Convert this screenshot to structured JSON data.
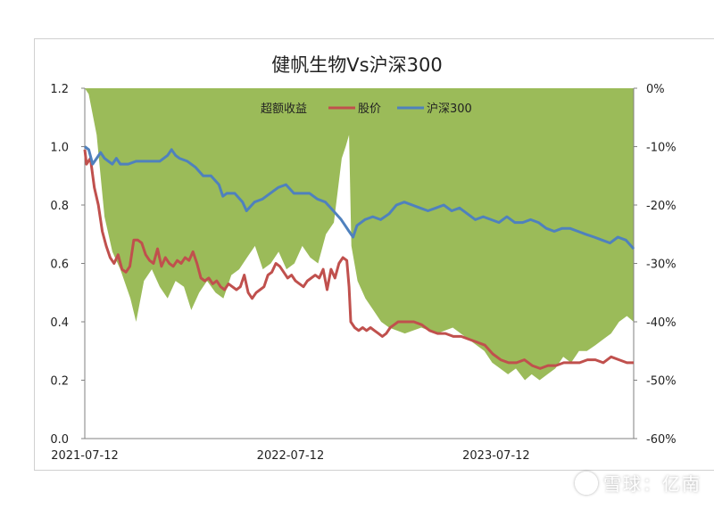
{
  "chart_data": {
    "type": "line",
    "title": "健帆生物Vs沪深300",
    "x_ticks": [
      "2021-07-12",
      "2022-07-12",
      "2023-07-12"
    ],
    "left_axis": {
      "ticks": [
        "1.2",
        "1.0",
        "0.8",
        "0.6",
        "0.4",
        "0.2",
        "0.0"
      ],
      "range": [
        0,
        1.2
      ]
    },
    "right_axis": {
      "ticks": [
        "0%",
        "-10%",
        "-20%",
        "-30%",
        "-40%",
        "-50%",
        "-60%"
      ],
      "range": [
        -0.6,
        0
      ]
    },
    "legend": {
      "placement": "top-center"
    },
    "x_range": [
      "2021-07-12",
      "2024-03-12"
    ],
    "series": [
      {
        "name": "超额收益",
        "kind": "area",
        "axis": "right",
        "color": "#9bbb59",
        "points": [
          [
            "2021-07-12",
            0.0
          ],
          [
            "2021-07-19",
            -0.01
          ],
          [
            "2021-08-02",
            -0.08
          ],
          [
            "2021-08-16",
            -0.22
          ],
          [
            "2021-08-30",
            -0.28
          ],
          [
            "2021-09-13",
            -0.31
          ],
          [
            "2021-10-01",
            -0.36
          ],
          [
            "2021-10-11",
            -0.4
          ],
          [
            "2021-10-25",
            -0.33
          ],
          [
            "2021-11-08",
            -0.31
          ],
          [
            "2021-11-22",
            -0.34
          ],
          [
            "2021-12-06",
            -0.36
          ],
          [
            "2021-12-20",
            -0.33
          ],
          [
            "2022-01-04",
            -0.34
          ],
          [
            "2022-01-17",
            -0.38
          ],
          [
            "2022-01-31",
            -0.35
          ],
          [
            "2022-02-14",
            -0.33
          ],
          [
            "2022-03-01",
            -0.35
          ],
          [
            "2022-03-15",
            -0.36
          ],
          [
            "2022-03-29",
            -0.32
          ],
          [
            "2022-04-12",
            -0.31
          ],
          [
            "2022-04-26",
            -0.29
          ],
          [
            "2022-05-10",
            -0.27
          ],
          [
            "2022-05-24",
            -0.31
          ],
          [
            "2022-06-07",
            -0.3
          ],
          [
            "2022-06-21",
            -0.28
          ],
          [
            "2022-07-05",
            -0.31
          ],
          [
            "2022-07-19",
            -0.3
          ],
          [
            "2022-08-02",
            -0.27
          ],
          [
            "2022-08-16",
            -0.29
          ],
          [
            "2022-08-30",
            -0.3
          ],
          [
            "2022-09-13",
            -0.25
          ],
          [
            "2022-09-27",
            -0.23
          ],
          [
            "2022-10-11",
            -0.12
          ],
          [
            "2022-10-18",
            -0.1
          ],
          [
            "2022-10-24",
            -0.08
          ],
          [
            "2022-10-28",
            -0.27
          ],
          [
            "2022-11-08",
            -0.33
          ],
          [
            "2022-11-22",
            -0.36
          ],
          [
            "2022-12-06",
            -0.38
          ],
          [
            "2022-12-20",
            -0.4
          ],
          [
            "2023-01-03",
            -0.41
          ],
          [
            "2023-01-31",
            -0.42
          ],
          [
            "2023-03-01",
            -0.41
          ],
          [
            "2023-03-29",
            -0.42
          ],
          [
            "2023-04-26",
            -0.41
          ],
          [
            "2023-05-24",
            -0.43
          ],
          [
            "2023-06-21",
            -0.45
          ],
          [
            "2023-07-05",
            -0.47
          ],
          [
            "2023-07-19",
            -0.48
          ],
          [
            "2023-08-02",
            -0.49
          ],
          [
            "2023-08-16",
            -0.48
          ],
          [
            "2023-09-01",
            -0.5
          ],
          [
            "2023-09-13",
            -0.49
          ],
          [
            "2023-09-27",
            -0.5
          ],
          [
            "2023-10-11",
            -0.49
          ],
          [
            "2023-10-25",
            -0.48
          ],
          [
            "2023-11-08",
            -0.46
          ],
          [
            "2023-11-22",
            -0.47
          ],
          [
            "2023-12-06",
            -0.45
          ],
          [
            "2023-12-20",
            -0.45
          ],
          [
            "2024-01-04",
            -0.44
          ],
          [
            "2024-01-18",
            -0.43
          ],
          [
            "2024-02-01",
            -0.42
          ],
          [
            "2024-02-15",
            -0.4
          ],
          [
            "2024-02-29",
            -0.39
          ],
          [
            "2024-03-12",
            -0.4
          ]
        ]
      },
      {
        "name": "股价",
        "kind": "line",
        "axis": "left",
        "color": "#c0504d",
        "points": [
          [
            "2021-07-12",
            0.99
          ],
          [
            "2021-07-15",
            0.94
          ],
          [
            "2021-07-22",
            0.96
          ],
          [
            "2021-07-29",
            0.86
          ],
          [
            "2021-08-05",
            0.8
          ],
          [
            "2021-08-12",
            0.71
          ],
          [
            "2021-08-19",
            0.66
          ],
          [
            "2021-08-26",
            0.62
          ],
          [
            "2021-09-02",
            0.6
          ],
          [
            "2021-09-09",
            0.63
          ],
          [
            "2021-09-16",
            0.58
          ],
          [
            "2021-09-23",
            0.57
          ],
          [
            "2021-09-30",
            0.59
          ],
          [
            "2021-10-07",
            0.68
          ],
          [
            "2021-10-14",
            0.68
          ],
          [
            "2021-10-21",
            0.67
          ],
          [
            "2021-10-28",
            0.63
          ],
          [
            "2021-11-04",
            0.61
          ],
          [
            "2021-11-11",
            0.6
          ],
          [
            "2021-11-18",
            0.65
          ],
          [
            "2021-11-25",
            0.59
          ],
          [
            "2021-12-02",
            0.62
          ],
          [
            "2021-12-09",
            0.6
          ],
          [
            "2021-12-16",
            0.59
          ],
          [
            "2021-12-23",
            0.61
          ],
          [
            "2021-12-30",
            0.6
          ],
          [
            "2022-01-06",
            0.62
          ],
          [
            "2022-01-13",
            0.61
          ],
          [
            "2022-01-20",
            0.64
          ],
          [
            "2022-01-27",
            0.6
          ],
          [
            "2022-02-03",
            0.55
          ],
          [
            "2022-02-10",
            0.54
          ],
          [
            "2022-02-17",
            0.55
          ],
          [
            "2022-02-24",
            0.53
          ],
          [
            "2022-03-03",
            0.54
          ],
          [
            "2022-03-10",
            0.52
          ],
          [
            "2022-03-17",
            0.51
          ],
          [
            "2022-03-24",
            0.53
          ],
          [
            "2022-03-31",
            0.52
          ],
          [
            "2022-04-07",
            0.51
          ],
          [
            "2022-04-14",
            0.52
          ],
          [
            "2022-04-21",
            0.56
          ],
          [
            "2022-04-28",
            0.5
          ],
          [
            "2022-05-05",
            0.48
          ],
          [
            "2022-05-12",
            0.5
          ],
          [
            "2022-05-19",
            0.51
          ],
          [
            "2022-05-26",
            0.52
          ],
          [
            "2022-06-02",
            0.56
          ],
          [
            "2022-06-09",
            0.57
          ],
          [
            "2022-06-16",
            0.6
          ],
          [
            "2022-06-23",
            0.59
          ],
          [
            "2022-06-30",
            0.57
          ],
          [
            "2022-07-07",
            0.55
          ],
          [
            "2022-07-14",
            0.56
          ],
          [
            "2022-07-21",
            0.54
          ],
          [
            "2022-07-28",
            0.53
          ],
          [
            "2022-08-04",
            0.52
          ],
          [
            "2022-08-11",
            0.54
          ],
          [
            "2022-08-18",
            0.55
          ],
          [
            "2022-08-25",
            0.56
          ],
          [
            "2022-09-01",
            0.55
          ],
          [
            "2022-09-08",
            0.58
          ],
          [
            "2022-09-15",
            0.51
          ],
          [
            "2022-09-22",
            0.58
          ],
          [
            "2022-09-29",
            0.55
          ],
          [
            "2022-10-06",
            0.6
          ],
          [
            "2022-10-13",
            0.62
          ],
          [
            "2022-10-20",
            0.61
          ],
          [
            "2022-10-24",
            0.52
          ],
          [
            "2022-10-27",
            0.4
          ],
          [
            "2022-11-03",
            0.38
          ],
          [
            "2022-11-10",
            0.37
          ],
          [
            "2022-11-17",
            0.38
          ],
          [
            "2022-11-24",
            0.37
          ],
          [
            "2022-12-01",
            0.38
          ],
          [
            "2022-12-08",
            0.37
          ],
          [
            "2022-12-15",
            0.36
          ],
          [
            "2022-12-22",
            0.35
          ],
          [
            "2022-12-29",
            0.36
          ],
          [
            "2023-01-05",
            0.38
          ],
          [
            "2023-01-12",
            0.39
          ],
          [
            "2023-01-19",
            0.4
          ],
          [
            "2023-02-02",
            0.4
          ],
          [
            "2023-02-16",
            0.4
          ],
          [
            "2023-03-02",
            0.39
          ],
          [
            "2023-03-16",
            0.37
          ],
          [
            "2023-03-30",
            0.36
          ],
          [
            "2023-04-13",
            0.36
          ],
          [
            "2023-04-27",
            0.35
          ],
          [
            "2023-05-11",
            0.35
          ],
          [
            "2023-05-25",
            0.34
          ],
          [
            "2023-06-08",
            0.33
          ],
          [
            "2023-06-22",
            0.32
          ],
          [
            "2023-07-06",
            0.29
          ],
          [
            "2023-07-20",
            0.27
          ],
          [
            "2023-08-03",
            0.26
          ],
          [
            "2023-08-17",
            0.26
          ],
          [
            "2023-08-31",
            0.27
          ],
          [
            "2023-09-14",
            0.25
          ],
          [
            "2023-09-28",
            0.24
          ],
          [
            "2023-10-12",
            0.25
          ],
          [
            "2023-10-26",
            0.25
          ],
          [
            "2023-11-09",
            0.26
          ],
          [
            "2023-11-23",
            0.26
          ],
          [
            "2023-12-07",
            0.26
          ],
          [
            "2023-12-21",
            0.27
          ],
          [
            "2024-01-04",
            0.27
          ],
          [
            "2024-01-18",
            0.26
          ],
          [
            "2024-02-01",
            0.28
          ],
          [
            "2024-02-15",
            0.27
          ],
          [
            "2024-02-29",
            0.26
          ],
          [
            "2024-03-12",
            0.26
          ]
        ]
      },
      {
        "name": "沪深300",
        "kind": "line",
        "axis": "left",
        "color": "#4f81bd",
        "points": [
          [
            "2021-07-12",
            1.0
          ],
          [
            "2021-07-19",
            0.99
          ],
          [
            "2021-07-26",
            0.94
          ],
          [
            "2021-08-02",
            0.96
          ],
          [
            "2021-08-09",
            0.98
          ],
          [
            "2021-08-16",
            0.96
          ],
          [
            "2021-08-23",
            0.95
          ],
          [
            "2021-08-30",
            0.94
          ],
          [
            "2021-09-06",
            0.96
          ],
          [
            "2021-09-13",
            0.94
          ],
          [
            "2021-09-27",
            0.94
          ],
          [
            "2021-10-11",
            0.95
          ],
          [
            "2021-10-25",
            0.95
          ],
          [
            "2021-11-08",
            0.95
          ],
          [
            "2021-11-22",
            0.95
          ],
          [
            "2021-12-06",
            0.97
          ],
          [
            "2021-12-13",
            0.99
          ],
          [
            "2021-12-20",
            0.97
          ],
          [
            "2021-12-27",
            0.96
          ],
          [
            "2022-01-10",
            0.95
          ],
          [
            "2022-01-24",
            0.93
          ],
          [
            "2022-02-07",
            0.9
          ],
          [
            "2022-02-21",
            0.9
          ],
          [
            "2022-03-07",
            0.87
          ],
          [
            "2022-03-14",
            0.83
          ],
          [
            "2022-03-21",
            0.84
          ],
          [
            "2022-04-04",
            0.84
          ],
          [
            "2022-04-18",
            0.81
          ],
          [
            "2022-04-25",
            0.78
          ],
          [
            "2022-05-09",
            0.81
          ],
          [
            "2022-05-23",
            0.82
          ],
          [
            "2022-06-06",
            0.84
          ],
          [
            "2022-06-20",
            0.86
          ],
          [
            "2022-07-04",
            0.87
          ],
          [
            "2022-07-18",
            0.84
          ],
          [
            "2022-08-01",
            0.84
          ],
          [
            "2022-08-15",
            0.84
          ],
          [
            "2022-08-29",
            0.82
          ],
          [
            "2022-09-12",
            0.81
          ],
          [
            "2022-09-26",
            0.78
          ],
          [
            "2022-10-10",
            0.75
          ],
          [
            "2022-10-24",
            0.71
          ],
          [
            "2022-10-31",
            0.69
          ],
          [
            "2022-11-07",
            0.73
          ],
          [
            "2022-11-21",
            0.75
          ],
          [
            "2022-12-05",
            0.76
          ],
          [
            "2022-12-19",
            0.75
          ],
          [
            "2023-01-03",
            0.77
          ],
          [
            "2023-01-16",
            0.8
          ],
          [
            "2023-01-30",
            0.81
          ],
          [
            "2023-02-13",
            0.8
          ],
          [
            "2023-02-27",
            0.79
          ],
          [
            "2023-03-13",
            0.78
          ],
          [
            "2023-03-27",
            0.79
          ],
          [
            "2023-04-10",
            0.8
          ],
          [
            "2023-04-24",
            0.78
          ],
          [
            "2023-05-08",
            0.79
          ],
          [
            "2023-05-22",
            0.77
          ],
          [
            "2023-06-05",
            0.75
          ],
          [
            "2023-06-19",
            0.76
          ],
          [
            "2023-07-03",
            0.75
          ],
          [
            "2023-07-17",
            0.74
          ],
          [
            "2023-07-31",
            0.76
          ],
          [
            "2023-08-14",
            0.74
          ],
          [
            "2023-08-28",
            0.74
          ],
          [
            "2023-09-11",
            0.75
          ],
          [
            "2023-09-25",
            0.74
          ],
          [
            "2023-10-09",
            0.72
          ],
          [
            "2023-10-23",
            0.71
          ],
          [
            "2023-11-06",
            0.72
          ],
          [
            "2023-11-20",
            0.72
          ],
          [
            "2023-12-04",
            0.71
          ],
          [
            "2023-12-18",
            0.7
          ],
          [
            "2024-01-02",
            0.69
          ],
          [
            "2024-01-16",
            0.68
          ],
          [
            "2024-01-30",
            0.67
          ],
          [
            "2024-02-13",
            0.69
          ],
          [
            "2024-02-27",
            0.68
          ],
          [
            "2024-03-12",
            0.65
          ]
        ]
      }
    ]
  },
  "watermark": {
    "text": "雪球：亿南"
  }
}
